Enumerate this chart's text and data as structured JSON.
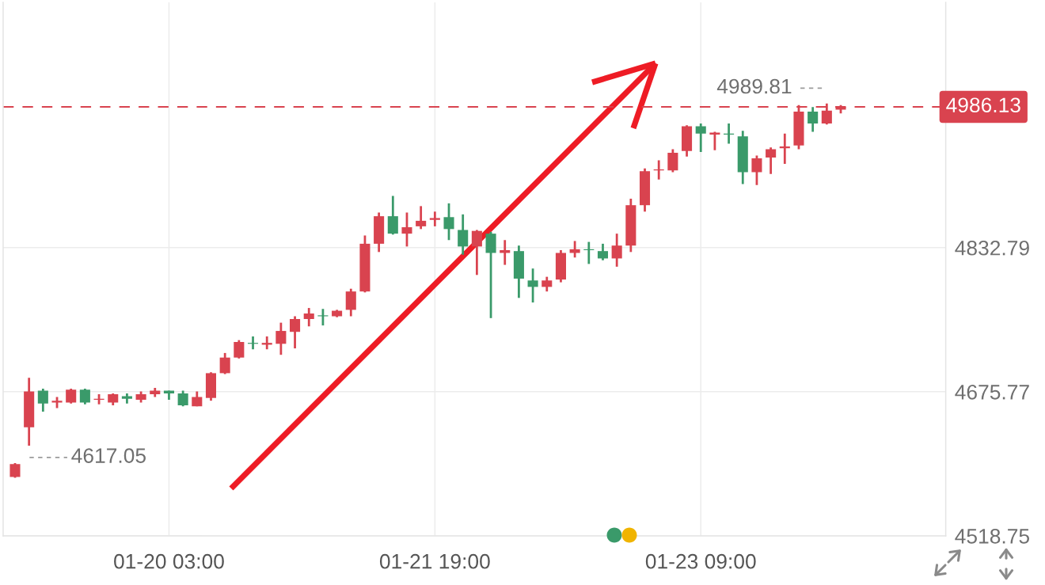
{
  "chart_data": {
    "type": "candlestick",
    "categories": [
      null,
      null,
      null,
      null,
      null,
      null,
      null,
      null,
      null,
      null,
      null,
      "01-20 03:00",
      null,
      null,
      null,
      null,
      null,
      null,
      null,
      null,
      null,
      null,
      null,
      null,
      null,
      null,
      null,
      null,
      null,
      null,
      "01-21 19:00",
      null,
      null,
      null,
      null,
      null,
      null,
      null,
      null,
      null,
      null,
      null,
      null,
      null,
      null,
      null,
      null,
      null,
      null,
      "01-23 09:00",
      null,
      null,
      null,
      null,
      null,
      null,
      null,
      null,
      null,
      null
    ],
    "ohlc": [
      [
        4583,
        4598,
        4582,
        4597
      ],
      [
        4637,
        4691,
        4617.05,
        4676
      ],
      [
        4677,
        4679,
        4654,
        4663
      ],
      [
        4664,
        4670,
        4658,
        4666
      ],
      [
        4664,
        4679,
        4663,
        4678
      ],
      [
        4678,
        4679,
        4662,
        4664
      ],
      [
        4667,
        4673,
        4662,
        4668
      ],
      [
        4664,
        4674,
        4661,
        4673
      ],
      [
        4671,
        4674,
        4663,
        4668
      ],
      [
        4667,
        4676,
        4664,
        4673
      ],
      [
        4673,
        4680,
        4670,
        4677
      ],
      [
        4677,
        4677,
        4667,
        4674
      ],
      [
        4674,
        4677,
        4660,
        4661
      ],
      [
        4660,
        4676,
        4660,
        4670
      ],
      [
        4669,
        4697,
        4666,
        4696
      ],
      [
        4696,
        4718,
        4695,
        4713
      ],
      [
        4713,
        4732,
        4712,
        4730
      ],
      [
        4729,
        4736,
        4722,
        4728
      ],
      [
        4727,
        4736,
        4722,
        4729
      ],
      [
        4728,
        4751,
        4716,
        4742
      ],
      [
        4741,
        4758,
        4723,
        4755
      ],
      [
        4755,
        4767,
        4747,
        4761
      ],
      [
        4759,
        4766,
        4748,
        4758
      ],
      [
        4758,
        4765,
        4757,
        4764
      ],
      [
        4765,
        4788,
        4758,
        4785
      ],
      [
        4785,
        4846,
        4784,
        4837
      ],
      [
        4837,
        4871,
        4828,
        4867
      ],
      [
        4867,
        4889,
        4847,
        4848
      ],
      [
        4848,
        4871,
        4834,
        4855
      ],
      [
        4856,
        4878,
        4853,
        4862
      ],
      [
        4863,
        4872,
        4856,
        4865
      ],
      [
        4866,
        4881,
        4841,
        4853
      ],
      [
        4852,
        4869,
        4825,
        4834
      ],
      [
        4834,
        4852,
        4803,
        4851
      ],
      [
        4848,
        4850,
        4756,
        4827
      ],
      [
        4827,
        4841,
        4814,
        4830
      ],
      [
        4829,
        4835,
        4778,
        4799
      ],
      [
        4797,
        4810,
        4773,
        4790
      ],
      [
        4790,
        4801,
        4785,
        4797
      ],
      [
        4798,
        4830,
        4795,
        4827
      ],
      [
        4827,
        4840,
        4822,
        4831
      ],
      [
        4831,
        4839,
        4815,
        4830
      ],
      [
        4829,
        4837,
        4819,
        4821
      ],
      [
        4821,
        4848,
        4812,
        4835
      ],
      [
        4835,
        4886,
        4828,
        4879
      ],
      [
        4879,
        4919,
        4872,
        4916
      ],
      [
        4917,
        4928,
        4907,
        4918
      ],
      [
        4917,
        4940,
        4915,
        4936
      ],
      [
        4938,
        4966,
        4932,
        4965
      ],
      [
        4965,
        4968,
        4937,
        4957
      ],
      [
        4956,
        4959,
        4939,
        4958
      ],
      [
        4957,
        4968,
        4946,
        4956
      ],
      [
        4954,
        4960,
        4902,
        4915
      ],
      [
        4915,
        4933,
        4901,
        4930
      ],
      [
        4931,
        4942,
        4913,
        4940
      ],
      [
        4941,
        4957,
        4924,
        4943
      ],
      [
        4944,
        4988,
        4940,
        4981
      ],
      [
        4981,
        4986,
        4959,
        4968
      ],
      [
        4968,
        4989.81,
        4967,
        4982
      ],
      [
        4983,
        4988,
        4979,
        4986.13
      ]
    ],
    "colors": [
      "#d9434f",
      "#d9434f",
      "#3a9a6a",
      "#d9434f",
      "#d9434f",
      "#3a9a6a",
      "#d9434f",
      "#d9434f",
      "#3a9a6a",
      "#d9434f",
      "#d9434f",
      "#3a9a6a",
      "#3a9a6a",
      "#d9434f",
      "#d9434f",
      "#d9434f",
      "#d9434f",
      "#3a9a6a",
      "#d9434f",
      "#d9434f",
      "#d9434f",
      "#d9434f",
      "#3a9a6a",
      "#d9434f",
      "#d9434f",
      "#d9434f",
      "#d9434f",
      "#3a9a6a",
      "#d9434f",
      "#d9434f",
      "#d9434f",
      "#3a9a6a",
      "#3a9a6a",
      "#d9434f",
      "#3a9a6a",
      "#d9434f",
      "#3a9a6a",
      "#3a9a6a",
      "#d9434f",
      "#d9434f",
      "#d9434f",
      "#3a9a6a",
      "#3a9a6a",
      "#d9434f",
      "#d9434f",
      "#d9434f",
      "#d9434f",
      "#d9434f",
      "#d9434f",
      "#3a9a6a",
      "#d9434f",
      "#3a9a6a",
      "#3a9a6a",
      "#d9434f",
      "#d9434f",
      "#d9434f",
      "#d9434f",
      "#3a9a6a",
      "#d9434f",
      "#d9434f"
    ],
    "ylim": [
      4518.75,
      5100
    ],
    "yticks": [
      4518.75,
      4675.77,
      4832.79
    ],
    "grid": true,
    "ref_lines": [
      {
        "axis": "y",
        "value": 4986.13,
        "label": "4986.13",
        "color": "#d9434f",
        "line_style": "dashed"
      }
    ],
    "annotations": [
      {
        "text": "4989.81",
        "y": 4989.81
      },
      "4617.05"
    ]
  }
}
